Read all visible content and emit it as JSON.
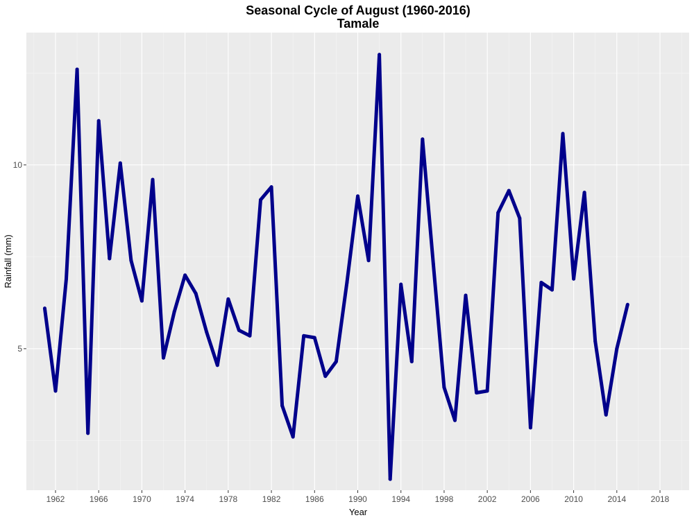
{
  "chart_data": {
    "type": "line",
    "title": "Seasonal Cycle of August (1960-2016)",
    "subtitle": "Tamale",
    "xlabel": "Year",
    "ylabel": "Rainfall (mm)",
    "xlim": [
      1959.3,
      2020.7
    ],
    "ylim": [
      1.15,
      13.6
    ],
    "x_ticks": [
      1962,
      1966,
      1970,
      1974,
      1978,
      1982,
      1986,
      1990,
      1994,
      1998,
      2002,
      2006,
      2010,
      2014,
      2018
    ],
    "y_ticks": [
      5,
      10
    ],
    "grid": true,
    "series": [
      {
        "color": "#00008b",
        "x": [
          1961,
          1962,
          1963,
          1964,
          1965,
          1966,
          1967,
          1968,
          1969,
          1970,
          1971,
          1972,
          1973,
          1974,
          1975,
          1976,
          1977,
          1978,
          1979,
          1980,
          1981,
          1982,
          1983,
          1984,
          1985,
          1986,
          1987,
          1988,
          1989,
          1990,
          1991,
          1992,
          1993,
          1994,
          1995,
          1996,
          1997,
          1998,
          1999,
          2000,
          2001,
          2002,
          2003,
          2004,
          2005,
          2006,
          2007,
          2008,
          2009,
          2010,
          2011,
          2012,
          2013,
          2014,
          2015
        ],
        "values": [
          6.1,
          3.85,
          6.9,
          12.6,
          2.7,
          11.2,
          7.45,
          10.05,
          7.4,
          6.3,
          9.6,
          4.75,
          6.0,
          7.0,
          6.5,
          5.45,
          4.55,
          6.35,
          5.5,
          5.35,
          9.05,
          9.4,
          3.45,
          2.6,
          5.35,
          5.3,
          4.25,
          4.65,
          6.8,
          9.15,
          7.4,
          13.0,
          1.45,
          6.75,
          4.65,
          10.7,
          7.3,
          3.95,
          3.05,
          6.45,
          3.8,
          3.85,
          8.7,
          9.3,
          8.55,
          2.85,
          6.8,
          6.6,
          10.85,
          6.9,
          9.25,
          5.2,
          3.2,
          5.0,
          6.2
        ]
      }
    ]
  }
}
